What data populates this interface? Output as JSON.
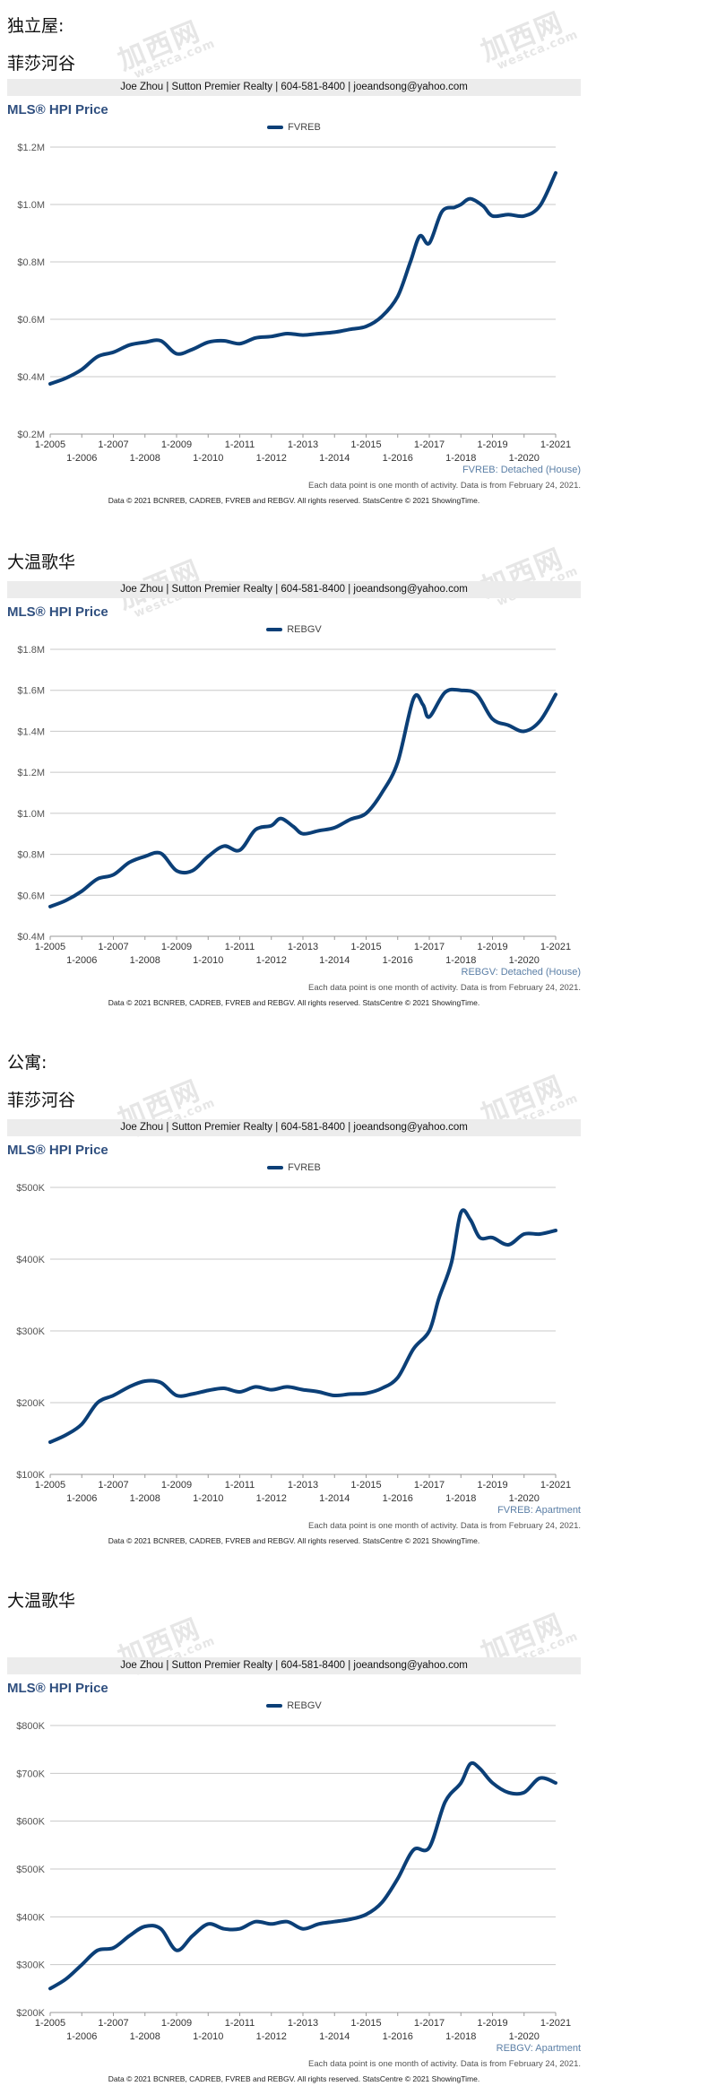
{
  "contact": "Joe Zhou | Sutton Premier Realty | 604-581-8400 | joeandsong@yahoo.com",
  "note": "Each data point is one month of activity. Data is from February 24, 2021.",
  "copyright": "Data © 2021 BCNREB, CADREB, FVREB and REBGV. All rights reserved. StatsCentre © 2021 ShowingTime.",
  "watermark": "加西网",
  "watermark_url": "westca.com",
  "sections": [
    {
      "heading": "独立屋:"
    },
    {
      "heading": "公寓:"
    }
  ],
  "panels": [
    {
      "subheading": "菲莎河谷"
    },
    {
      "subheading": "大温歌华"
    },
    {
      "subheading": "菲莎河谷"
    },
    {
      "subheading": "大温歌华"
    }
  ],
  "chart_data": [
    {
      "type": "line",
      "title": "MLS® HPI Price",
      "source_label": "FVREB: Detached (House)",
      "x_ticks_top": [
        "1-2005",
        "1-2007",
        "1-2009",
        "1-2011",
        "1-2013",
        "1-2015",
        "1-2017",
        "1-2019",
        "1-2021"
      ],
      "x_ticks_bottom": [
        "1-2006",
        "1-2008",
        "1-2010",
        "1-2012",
        "1-2014",
        "1-2016",
        "1-2018",
        "1-2020"
      ],
      "y_ticks": [
        "$0.2M",
        "$0.4M",
        "$0.6M",
        "$0.8M",
        "$1.0M",
        "$1.2M"
      ],
      "ylim": [
        200000,
        1200000
      ],
      "series": [
        {
          "name": "FVREB",
          "color": "#0b3f77",
          "x": [
            2005.0,
            2005.5,
            2006.0,
            2006.5,
            2007.0,
            2007.5,
            2008.0,
            2008.5,
            2009.0,
            2009.5,
            2010.0,
            2010.5,
            2011.0,
            2011.5,
            2012.0,
            2012.5,
            2013.0,
            2013.5,
            2014.0,
            2014.5,
            2015.0,
            2015.5,
            2016.0,
            2016.4,
            2016.7,
            2017.0,
            2017.4,
            2017.8,
            2018.0,
            2018.3,
            2018.7,
            2019.0,
            2019.5,
            2020.0,
            2020.5,
            2021.0
          ],
          "y": [
            375000,
            395000,
            425000,
            470000,
            485000,
            510000,
            520000,
            525000,
            480000,
            495000,
            520000,
            525000,
            515000,
            535000,
            540000,
            550000,
            545000,
            550000,
            555000,
            565000,
            575000,
            610000,
            680000,
            800000,
            890000,
            865000,
            975000,
            990000,
            1000000,
            1020000,
            995000,
            960000,
            965000,
            960000,
            995000,
            1110000
          ]
        }
      ]
    },
    {
      "type": "line",
      "title": "MLS® HPI Price",
      "source_label": "REBGV: Detached (House)",
      "x_ticks_top": [
        "1-2005",
        "1-2007",
        "1-2009",
        "1-2011",
        "1-2013",
        "1-2015",
        "1-2017",
        "1-2019",
        "1-2021"
      ],
      "x_ticks_bottom": [
        "1-2006",
        "1-2008",
        "1-2010",
        "1-2012",
        "1-2014",
        "1-2016",
        "1-2018",
        "1-2020"
      ],
      "y_ticks": [
        "$0.4M",
        "$0.6M",
        "$0.8M",
        "$1.0M",
        "$1.2M",
        "$1.4M",
        "$1.6M",
        "$1.8M"
      ],
      "ylim": [
        400000,
        1800000
      ],
      "series": [
        {
          "name": "REBGV",
          "color": "#0b3f77",
          "x": [
            2005.0,
            2005.5,
            2006.0,
            2006.5,
            2007.0,
            2007.5,
            2008.0,
            2008.5,
            2009.0,
            2009.5,
            2010.0,
            2010.5,
            2011.0,
            2011.5,
            2012.0,
            2012.3,
            2012.7,
            2013.0,
            2013.5,
            2014.0,
            2014.5,
            2015.0,
            2015.5,
            2016.0,
            2016.5,
            2016.8,
            2017.0,
            2017.5,
            2018.0,
            2018.5,
            2019.0,
            2019.5,
            2020.0,
            2020.5,
            2021.0
          ],
          "y": [
            545000,
            575000,
            620000,
            680000,
            700000,
            760000,
            790000,
            805000,
            720000,
            720000,
            790000,
            840000,
            820000,
            920000,
            940000,
            975000,
            935000,
            900000,
            915000,
            930000,
            970000,
            1000000,
            1100000,
            1250000,
            1560000,
            1530000,
            1470000,
            1590000,
            1600000,
            1580000,
            1460000,
            1430000,
            1400000,
            1450000,
            1580000
          ]
        }
      ]
    },
    {
      "type": "line",
      "title": "MLS® HPI Price",
      "source_label": "FVREB: Apartment",
      "x_ticks_top": [
        "1-2005",
        "1-2007",
        "1-2009",
        "1-2011",
        "1-2013",
        "1-2015",
        "1-2017",
        "1-2019",
        "1-2021"
      ],
      "x_ticks_bottom": [
        "1-2006",
        "1-2008",
        "1-2010",
        "1-2012",
        "1-2014",
        "1-2016",
        "1-2018",
        "1-2020"
      ],
      "y_ticks": [
        "$100K",
        "$200K",
        "$300K",
        "$400K",
        "$500K"
      ],
      "ylim": [
        100000,
        500000
      ],
      "series": [
        {
          "name": "FVREB",
          "color": "#0b3f77",
          "x": [
            2005.0,
            2005.5,
            2006.0,
            2006.5,
            2007.0,
            2007.5,
            2008.0,
            2008.5,
            2009.0,
            2009.5,
            2010.0,
            2010.5,
            2011.0,
            2011.5,
            2012.0,
            2012.5,
            2013.0,
            2013.5,
            2014.0,
            2014.5,
            2015.0,
            2015.5,
            2016.0,
            2016.5,
            2017.0,
            2017.3,
            2017.7,
            2018.0,
            2018.3,
            2018.6,
            2019.0,
            2019.5,
            2020.0,
            2020.5,
            2021.0
          ],
          "y": [
            145000,
            155000,
            170000,
            200000,
            210000,
            222000,
            230000,
            228000,
            210000,
            212000,
            217000,
            220000,
            215000,
            222000,
            218000,
            222000,
            218000,
            215000,
            210000,
            212000,
            213000,
            220000,
            235000,
            275000,
            300000,
            345000,
            395000,
            465000,
            455000,
            430000,
            430000,
            420000,
            435000,
            435000,
            440000
          ]
        }
      ]
    },
    {
      "type": "line",
      "title": "MLS® HPI Price",
      "source_label": "REBGV: Apartment",
      "x_ticks_top": [
        "1-2005",
        "1-2007",
        "1-2009",
        "1-2011",
        "1-2013",
        "1-2015",
        "1-2017",
        "1-2019",
        "1-2021"
      ],
      "x_ticks_bottom": [
        "1-2006",
        "1-2008",
        "1-2010",
        "1-2012",
        "1-2014",
        "1-2016",
        "1-2018",
        "1-2020"
      ],
      "y_ticks": [
        "$200K",
        "$300K",
        "$400K",
        "$500K",
        "$600K",
        "$700K",
        "$800K"
      ],
      "ylim": [
        200000,
        800000
      ],
      "series": [
        {
          "name": "REBGV",
          "color": "#0b3f77",
          "x": [
            2005.0,
            2005.5,
            2006.0,
            2006.5,
            2007.0,
            2007.5,
            2008.0,
            2008.5,
            2009.0,
            2009.5,
            2010.0,
            2010.5,
            2011.0,
            2011.5,
            2012.0,
            2012.5,
            2013.0,
            2013.5,
            2014.0,
            2014.5,
            2015.0,
            2015.5,
            2016.0,
            2016.5,
            2017.0,
            2017.5,
            2018.0,
            2018.3,
            2018.6,
            2019.0,
            2019.5,
            2020.0,
            2020.5,
            2021.0
          ],
          "y": [
            250000,
            270000,
            300000,
            330000,
            335000,
            360000,
            380000,
            375000,
            330000,
            360000,
            385000,
            375000,
            375000,
            390000,
            385000,
            390000,
            375000,
            385000,
            390000,
            395000,
            405000,
            430000,
            480000,
            540000,
            545000,
            640000,
            680000,
            720000,
            710000,
            680000,
            660000,
            660000,
            690000,
            680000
          ]
        }
      ]
    }
  ]
}
